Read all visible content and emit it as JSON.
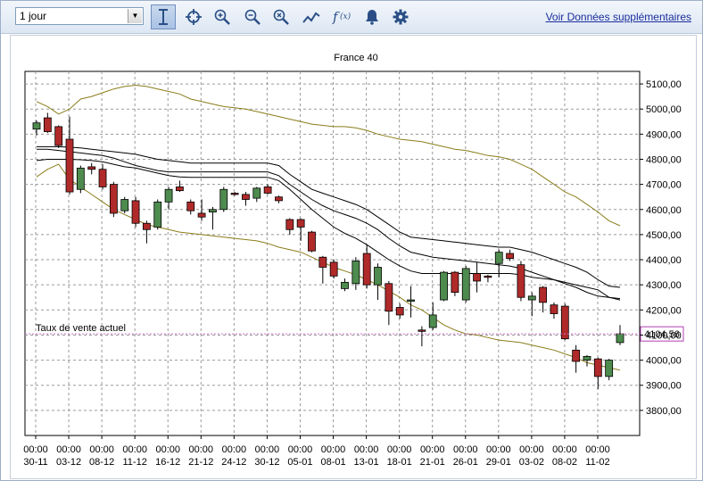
{
  "toolbar": {
    "period_select": "1 jour",
    "buttons": [
      {
        "name": "cursor-icon"
      },
      {
        "name": "crosshair-icon"
      },
      {
        "name": "zoom-in-icon"
      },
      {
        "name": "zoom-out-icon"
      },
      {
        "name": "zoom-reset-icon"
      },
      {
        "name": "line-chart-icon"
      },
      {
        "name": "function-icon"
      },
      {
        "name": "bell-icon"
      },
      {
        "name": "gear-icon"
      }
    ],
    "more_data_link": "Voir Données supplémentaires"
  },
  "chart_data": {
    "type": "candlestick",
    "title": "France 40",
    "ylim": [
      3700,
      5150
    ],
    "yticks": [
      3800,
      3900,
      4000,
      4100,
      4200,
      4300,
      4400,
      4500,
      4600,
      4700,
      4800,
      4900,
      5000,
      5100
    ],
    "ytick_labels": [
      "3800,00",
      "3900,00",
      "4000,00",
      "4100,00",
      "4200,00",
      "4300,00",
      "4400,00",
      "4500,00",
      "4600,00",
      "4700,00",
      "4800,00",
      "4900,00",
      "5000,00",
      "5100,00"
    ],
    "xtick_time": "00:00",
    "xtick_labels": [
      "30-11",
      "03-12",
      "08-12",
      "11-12",
      "16-12",
      "21-12",
      "24-12",
      "30-12",
      "05-01",
      "08-01",
      "13-01",
      "18-01",
      "21-01",
      "26-01",
      "29-01",
      "03-02",
      "08-02",
      "11-02"
    ],
    "current_rate_label": "Taux de vente actuel",
    "current_rate": 4104.56,
    "current_rate_text": "4104,56",
    "grid": true,
    "colors": {
      "up": "#4e8b4e",
      "down": "#b02a2a",
      "bollinger_outer": "#8b7d1a",
      "bollinger_inner": "#000000",
      "current_line": "#d070d0"
    },
    "candles": [
      {
        "o": 4920,
        "h": 4955,
        "l": 4895,
        "c": 4945
      },
      {
        "o": 4965,
        "h": 4985,
        "l": 4905,
        "c": 4910
      },
      {
        "o": 4930,
        "h": 4935,
        "l": 4845,
        "c": 4855
      },
      {
        "o": 4880,
        "h": 4970,
        "l": 4660,
        "c": 4670
      },
      {
        "o": 4680,
        "h": 4775,
        "l": 4665,
        "c": 4765
      },
      {
        "o": 4770,
        "h": 4785,
        "l": 4740,
        "c": 4760
      },
      {
        "o": 4760,
        "h": 4780,
        "l": 4680,
        "c": 4690
      },
      {
        "o": 4700,
        "h": 4710,
        "l": 4570,
        "c": 4585
      },
      {
        "o": 4595,
        "h": 4650,
        "l": 4585,
        "c": 4640
      },
      {
        "o": 4635,
        "h": 4650,
        "l": 4530,
        "c": 4545
      },
      {
        "o": 4545,
        "h": 4555,
        "l": 4465,
        "c": 4520
      },
      {
        "o": 4530,
        "h": 4640,
        "l": 4520,
        "c": 4630
      },
      {
        "o": 4630,
        "h": 4690,
        "l": 4600,
        "c": 4680
      },
      {
        "o": 4690,
        "h": 4715,
        "l": 4670,
        "c": 4675
      },
      {
        "o": 4630,
        "h": 4640,
        "l": 4580,
        "c": 4595
      },
      {
        "o": 4585,
        "h": 4640,
        "l": 4555,
        "c": 4570
      },
      {
        "o": 4590,
        "h": 4610,
        "l": 4520,
        "c": 4600
      },
      {
        "o": 4600,
        "h": 4690,
        "l": 4590,
        "c": 4680
      },
      {
        "o": 4665,
        "h": 4670,
        "l": 4655,
        "c": 4660
      },
      {
        "o": 4660,
        "h": 4670,
        "l": 4615,
        "c": 4640
      },
      {
        "o": 4645,
        "h": 4690,
        "l": 4630,
        "c": 4685
      },
      {
        "o": 4690,
        "h": 4700,
        "l": 4660,
        "c": 4665
      },
      {
        "o": 4650,
        "h": 4655,
        "l": 4625,
        "c": 4635
      },
      {
        "o": 4560,
        "h": 4565,
        "l": 4500,
        "c": 4520
      },
      {
        "o": 4560,
        "h": 4565,
        "l": 4475,
        "c": 4530
      },
      {
        "o": 4510,
        "h": 4515,
        "l": 4430,
        "c": 4435
      },
      {
        "o": 4410,
        "h": 4415,
        "l": 4305,
        "c": 4370
      },
      {
        "o": 4390,
        "h": 4400,
        "l": 4325,
        "c": 4335
      },
      {
        "o": 4285,
        "h": 4325,
        "l": 4275,
        "c": 4310
      },
      {
        "o": 4305,
        "h": 4410,
        "l": 4280,
        "c": 4395
      },
      {
        "o": 4425,
        "h": 4460,
        "l": 4285,
        "c": 4300
      },
      {
        "o": 4300,
        "h": 4385,
        "l": 4240,
        "c": 4370
      },
      {
        "o": 4305,
        "h": 4315,
        "l": 4140,
        "c": 4195
      },
      {
        "o": 4210,
        "h": 4225,
        "l": 4165,
        "c": 4180
      },
      {
        "o": 4235,
        "h": 4295,
        "l": 4170,
        "c": 4240
      },
      {
        "o": 4120,
        "h": 4135,
        "l": 4055,
        "c": 4115
      },
      {
        "o": 4130,
        "h": 4230,
        "l": 4120,
        "c": 4180
      },
      {
        "o": 4240,
        "h": 4355,
        "l": 4235,
        "c": 4350
      },
      {
        "o": 4350,
        "h": 4355,
        "l": 4255,
        "c": 4270
      },
      {
        "o": 4240,
        "h": 4375,
        "l": 4230,
        "c": 4365
      },
      {
        "o": 4345,
        "h": 4390,
        "l": 4270,
        "c": 4315
      },
      {
        "o": 4335,
        "h": 4340,
        "l": 4310,
        "c": 4330
      },
      {
        "o": 4385,
        "h": 4440,
        "l": 4330,
        "c": 4430
      },
      {
        "o": 4425,
        "h": 4440,
        "l": 4395,
        "c": 4405
      },
      {
        "o": 4380,
        "h": 4395,
        "l": 4235,
        "c": 4250
      },
      {
        "o": 4240,
        "h": 4270,
        "l": 4175,
        "c": 4255
      },
      {
        "o": 4290,
        "h": 4295,
        "l": 4190,
        "c": 4230
      },
      {
        "o": 4220,
        "h": 4230,
        "l": 4165,
        "c": 4185
      },
      {
        "o": 4215,
        "h": 4225,
        "l": 4080,
        "c": 4085
      },
      {
        "o": 4040,
        "h": 4060,
        "l": 3950,
        "c": 3995
      },
      {
        "o": 4000,
        "h": 4020,
        "l": 3975,
        "c": 4015
      },
      {
        "o": 4005,
        "h": 4010,
        "l": 3885,
        "c": 3935
      },
      {
        "o": 3935,
        "h": 4005,
        "l": 3920,
        "c": 4000
      },
      {
        "o": 4070,
        "h": 4140,
        "l": 4060,
        "c": 4105
      }
    ],
    "bollinger_upper": [
      5030,
      5010,
      4980,
      5000,
      5040,
      5050,
      5065,
      5080,
      5090,
      5095,
      5090,
      5080,
      5070,
      5060,
      5040,
      5030,
      5020,
      5010,
      5005,
      5000,
      4990,
      4980,
      4970,
      4960,
      4950,
      4940,
      4935,
      4930,
      4930,
      4925,
      4915,
      4900,
      4890,
      4880,
      4875,
      4870,
      4860,
      4850,
      4840,
      4835,
      4825,
      4815,
      4810,
      4800,
      4780,
      4760,
      4730,
      4700,
      4670,
      4650,
      4620,
      4590,
      4555,
      4535
    ],
    "bollinger_mid_upper": [
      4850,
      4850,
      4850,
      4848,
      4845,
      4840,
      4835,
      4830,
      4825,
      4820,
      4810,
      4800,
      4795,
      4790,
      4785,
      4785,
      4785,
      4785,
      4785,
      4785,
      4785,
      4785,
      4775,
      4740,
      4710,
      4680,
      4665,
      4650,
      4635,
      4620,
      4600,
      4570,
      4540,
      4510,
      4490,
      4485,
      4480,
      4475,
      4470,
      4465,
      4460,
      4455,
      4450,
      4450,
      4440,
      4430,
      4415,
      4400,
      4385,
      4370,
      4350,
      4320,
      4295,
      4290
    ],
    "bollinger_mid_lower": [
      4840,
      4840,
      4835,
      4830,
      4825,
      4820,
      4815,
      4805,
      4790,
      4775,
      4765,
      4755,
      4750,
      4750,
      4750,
      4750,
      4750,
      4750,
      4750,
      4750,
      4750,
      4750,
      4735,
      4700,
      4670,
      4640,
      4615,
      4595,
      4580,
      4565,
      4545,
      4520,
      4485,
      4455,
      4430,
      4420,
      4410,
      4405,
      4400,
      4395,
      4390,
      4385,
      4380,
      4375,
      4365,
      4350,
      4335,
      4320,
      4305,
      4290,
      4270,
      4255,
      4250,
      4245
    ],
    "bollinger_lower": [
      4795,
      4800,
      4800,
      4800,
      4798,
      4795,
      4790,
      4780,
      4770,
      4765,
      4755,
      4745,
      4735,
      4730,
      4728,
      4728,
      4728,
      4728,
      4728,
      4728,
      4728,
      4728,
      4715,
      4680,
      4640,
      4600,
      4565,
      4530,
      4505,
      4485,
      4460,
      4430,
      4400,
      4375,
      4355,
      4345,
      4345,
      4345,
      4345,
      4345,
      4345,
      4345,
      4345,
      4345,
      4340,
      4330,
      4325,
      4320,
      4310,
      4300,
      4290,
      4280,
      4250,
      4240
    ],
    "bollinger_bottom": [
      4730,
      4760,
      4780,
      4720,
      4690,
      4660,
      4630,
      4600,
      4580,
      4560,
      4540,
      4530,
      4520,
      4510,
      4505,
      4500,
      4495,
      4490,
      4485,
      4480,
      4475,
      4465,
      4450,
      4440,
      4430,
      4410,
      4390,
      4370,
      4355,
      4340,
      4320,
      4300,
      4275,
      4250,
      4220,
      4200,
      4170,
      4140,
      4120,
      4105,
      4100,
      4090,
      4080,
      4075,
      4070,
      4060,
      4050,
      4040,
      4025,
      4010,
      3990,
      3980,
      3970,
      3960
    ]
  }
}
